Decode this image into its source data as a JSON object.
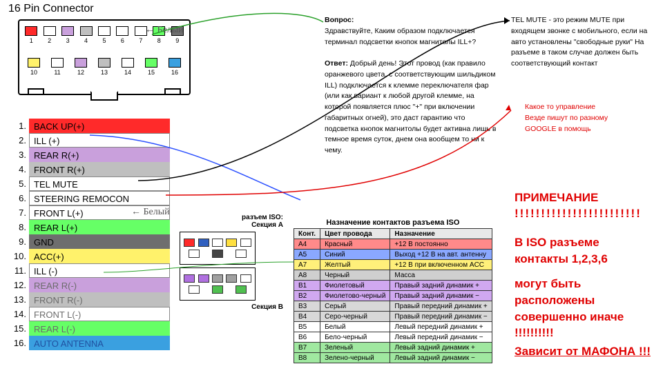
{
  "title": "16 Pin Connector",
  "pinsTop": [
    {
      "n": "1",
      "c": "#ff2a2a"
    },
    {
      "n": "2",
      "c": "#ffffff"
    },
    {
      "n": "3",
      "c": "#c9a0dc"
    },
    {
      "n": "4",
      "c": "#bfbfbf"
    },
    {
      "n": "5",
      "c": "#ffffff"
    },
    {
      "n": "6",
      "c": "#ffffff"
    },
    {
      "n": "7",
      "c": "#ffffff"
    },
    {
      "n": "8",
      "c": "#66ff66"
    },
    {
      "n": "9",
      "c": "#6e6e6e"
    }
  ],
  "pinsBot": [
    {
      "n": "10",
      "c": "#fff26b"
    },
    {
      "n": "11",
      "c": "#ffffff"
    },
    {
      "n": "12",
      "c": "#c9a0dc"
    },
    {
      "n": "13",
      "c": "#bfbfbf"
    },
    {
      "n": "14",
      "c": "#ffffff"
    },
    {
      "n": "15",
      "c": "#66ff66"
    },
    {
      "n": "16",
      "c": "#3aa0e0"
    }
  ],
  "hand_white": "Белый",
  "hand_white2": "Белый",
  "pinlist": [
    {
      "n": "1.",
      "t": "BACK UP(+)",
      "bg": "#ff2a2a",
      "fg": "#000",
      "b": false
    },
    {
      "n": "2.",
      "t": "ILL (+)",
      "bg": "#ffffff",
      "fg": "#000",
      "b": true
    },
    {
      "n": "3.",
      "t": "REAR R(+)",
      "bg": "#c9a0dc",
      "fg": "#000",
      "b": false
    },
    {
      "n": "4.",
      "t": "FRONT R(+)",
      "bg": "#bfbfbf",
      "fg": "#000",
      "b": false
    },
    {
      "n": "5.",
      "t": "TEL MUTE",
      "bg": "#ffffff",
      "fg": "#000",
      "b": true
    },
    {
      "n": "6.",
      "t": "STEERING REMOCON",
      "bg": "#ffffff",
      "fg": "#000",
      "b": true
    },
    {
      "n": "7.",
      "t": "FRONT L(+)",
      "bg": "#ffffff",
      "fg": "#000",
      "b": true
    },
    {
      "n": "8.",
      "t": "REAR L(+)",
      "bg": "#66ff66",
      "fg": "#000",
      "b": false
    },
    {
      "n": "9.",
      "t": "GND",
      "bg": "#6e6e6e",
      "fg": "#000",
      "b": false
    },
    {
      "n": "10.",
      "t": "ACC(+)",
      "bg": "#fff26b",
      "fg": "#000",
      "b": false
    },
    {
      "n": "11.",
      "t": "ILL (-)",
      "bg": "#ffffff",
      "fg": "#000",
      "b": true
    },
    {
      "n": "12.",
      "t": "REAR R(-)",
      "bg": "#c9a0dc",
      "fg": "#6b6b6b",
      "b": false
    },
    {
      "n": "13.",
      "t": "FRONT R(-)",
      "bg": "#bfbfbf",
      "fg": "#6b6b6b",
      "b": false
    },
    {
      "n": "14.",
      "t": "FRONT L(-)",
      "bg": "#ffffff",
      "fg": "#6b6b6b",
      "b": true
    },
    {
      "n": "15.",
      "t": "REAR L(-)",
      "bg": "#66ff66",
      "fg": "#6b6b6b",
      "b": false
    },
    {
      "n": "16.",
      "t": "AUTO ANTENNA",
      "bg": "#3aa0e0",
      "fg": "#2050a0",
      "b": false
    }
  ],
  "iso_title1": "разъем ISO:",
  "iso_secA": "Секция A",
  "iso_secB": "Секция B",
  "iso_colors_a": [
    "#ff2a2a",
    "#3060c0",
    "#ffffff",
    "#ffe040",
    "#ffffff",
    "#ffffff",
    "#444444",
    "#ffffff"
  ],
  "iso_colors_b": [
    "#b070e0",
    "#b070e0",
    "#a0a0a0",
    "#a0a0a0",
    "#ffffff",
    "#ffffff",
    "#50c050",
    "#50c050"
  ],
  "qa_q_label": "Вопрос:",
  "qa_q": "Здравствуйте, Каким образом подключается терминал подсветки кнопок магнитолы ILL+?",
  "qa_a_label": "Ответ:",
  "qa_a": "Добрый день! Этот провод (как правило оранжевого цвета, с соответствующим шильдиком ILL) подключается к клемме переключателя фар (или как вариант к любой другой клемме, на которой появляется плюс \"+\" при включении габаритных огней), это даст гарантию что подсветка кнопок магнитолы будет активна лишь в темное время суток, днем она вообщем то ни к чему.",
  "telmute_note": "TEL MUTE - это режим MUTE при входящем звонке с мобильного, если на авто установлены \"свободные руки\" На разъеме в таком случае должен быть соответствующий контакт",
  "red_note": "Какое то управление\nВезде пишут по разному\nGOOGLE в помощь",
  "big1": "ПРИМЕЧАНИЕ",
  "big1b": "!!!!!!!!!!!!!!!!!!!!!!!!",
  "big2": "В ISO разъеме контакты 1,2,3,6",
  "big3": "могут быть расположены совершенно иначе !!!!!!!!!!",
  "big4": "Зависит от МАФОНА !!!",
  "iso_caption": "Назначение контактов разъема ISO",
  "iso_head": [
    "Конт.",
    "Цвет провода",
    "Назначение"
  ],
  "iso_rows": [
    {
      "k": "A4",
      "p": "Красный",
      "d": "+12 В постоянно",
      "bg": "#ff8a8a"
    },
    {
      "k": "A5",
      "p": "Синий",
      "d": "Выход +12 В на авт. антенну",
      "bg": "#8aa8ff"
    },
    {
      "k": "A7",
      "p": "Желтый",
      "d": "+12 В при включенном ACC",
      "bg": "#fff07a"
    },
    {
      "k": "A8",
      "p": "Черный",
      "d": "Масса",
      "bg": "#cfcfcf"
    },
    {
      "k": "B1",
      "p": "Фиолетовый",
      "d": "Правый задний динамик +",
      "bg": "#d0a8f0"
    },
    {
      "k": "B2",
      "p": "Фиолетово-черный",
      "d": "Правый задний динамик −",
      "bg": "#d0a8f0"
    },
    {
      "k": "B3",
      "p": "Серый",
      "d": "Правый передний динамик +",
      "bg": "#d8d8d8"
    },
    {
      "k": "B4",
      "p": "Серо-черный",
      "d": "Правый передний динамик −",
      "bg": "#d8d8d8"
    },
    {
      "k": "B5",
      "p": "Белый",
      "d": "Левый передний динамик +",
      "bg": "#ffffff"
    },
    {
      "k": "B6",
      "p": "Бело-черный",
      "d": "Левый передний динамик −",
      "bg": "#ffffff"
    },
    {
      "k": "B7",
      "p": "Зеленый",
      "d": "Левый задний динамик +",
      "bg": "#a0e8a0"
    },
    {
      "k": "B8",
      "p": "Зелено-черный",
      "d": "Левый задний динамик −",
      "bg": "#a0e8a0"
    }
  ]
}
